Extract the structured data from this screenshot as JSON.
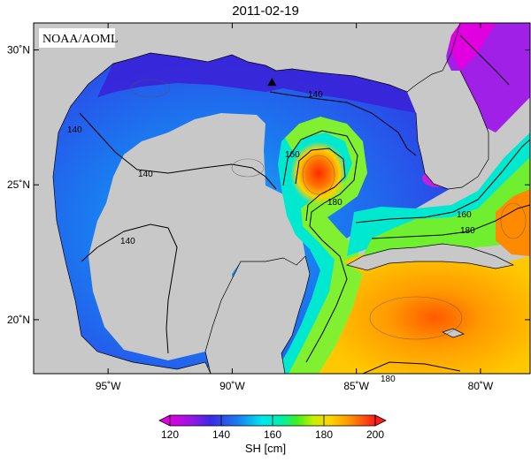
{
  "title": "2011-02-19",
  "watermark": "NOAA/AOML",
  "map": {
    "lon_range": [
      -98,
      -78
    ],
    "lat_range": [
      18,
      31
    ],
    "lon_ticks": [
      {
        "value": -95,
        "label": "95˚W"
      },
      {
        "value": -90,
        "label": "90˚W"
      },
      {
        "value": -85,
        "label": "85˚W"
      },
      {
        "value": -80,
        "label": "80˚W"
      }
    ],
    "lat_ticks": [
      {
        "value": 20,
        "label": "20˚N"
      },
      {
        "value": 25,
        "label": "25˚N"
      },
      {
        "value": 30,
        "label": "30˚N"
      }
    ],
    "contour_labels": [
      "140",
      "140",
      "140",
      "160",
      "180",
      "160",
      "180",
      "180",
      "140"
    ],
    "marker": {
      "lon": -88.4,
      "lat": 28.8
    }
  },
  "colorbar": {
    "label": "SH [cm]",
    "min": 120,
    "max": 200,
    "ticks": [
      {
        "value": 120,
        "label": "120"
      },
      {
        "value": 140,
        "label": "140"
      },
      {
        "value": 160,
        "label": "160"
      },
      {
        "value": 180,
        "label": "180"
      },
      {
        "value": 200,
        "label": "200"
      }
    ],
    "colors": [
      "#e000e0",
      "#8a1ae6",
      "#3a2ae6",
      "#1a7cf0",
      "#00e6f0",
      "#00f0a0",
      "#40f020",
      "#c8f000",
      "#ffd400",
      "#ff9a00",
      "#ff4a00",
      "#ff1a1a"
    ]
  }
}
